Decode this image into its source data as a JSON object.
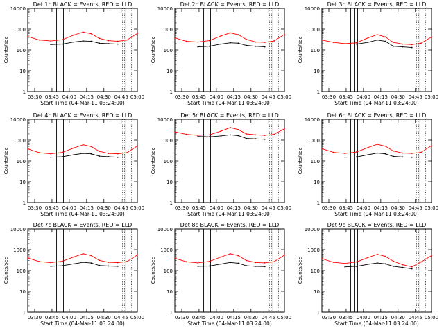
{
  "figure": {
    "background": "#ffffff",
    "series_colors": {
      "events": "#000000",
      "lld": "#ff0000"
    },
    "x_axis": {
      "title": "Start Time (04-Mar-11 03:24:00)",
      "tick_labels": [
        "03:30",
        "03:45",
        "04:00",
        "04:15",
        "04:30",
        "04:45",
        "05:00"
      ],
      "range_minutes": [
        0,
        95
      ]
    },
    "y_axis": {
      "title": "Counts/sec",
      "scale": "log",
      "range": [
        1,
        10000
      ],
      "tick_labels": [
        "1",
        "10",
        "100",
        "1000",
        "10000"
      ]
    }
  },
  "chart_data": [
    {
      "type": "line",
      "title": "Det 1c BLACK = Events, RED = LLD",
      "x": [
        0,
        10,
        20,
        30,
        40,
        48,
        55,
        62,
        70,
        78,
        86,
        95
      ],
      "series": [
        {
          "color": "#000000",
          "values": [
            null,
            null,
            180,
            190,
            240,
            270,
            260,
            210,
            200,
            190,
            null,
            null
          ]
        },
        {
          "color": "#ff0000",
          "values": [
            440,
            300,
            270,
            310,
            520,
            720,
            600,
            360,
            280,
            260,
            300,
            620
          ]
        }
      ]
    },
    {
      "type": "line",
      "title": "Det 2c BLACK = Events, RED = LLD",
      "x": [
        0,
        10,
        20,
        30,
        40,
        48,
        55,
        62,
        70,
        78,
        86,
        95
      ],
      "series": [
        {
          "color": "#000000",
          "values": [
            null,
            null,
            140,
            150,
            190,
            220,
            210,
            165,
            150,
            140,
            null,
            null
          ]
        },
        {
          "color": "#ff0000",
          "values": [
            380,
            260,
            240,
            280,
            470,
            660,
            540,
            320,
            240,
            230,
            270,
            560
          ]
        }
      ]
    },
    {
      "type": "line",
      "title": "Det 3c BLACK = Events, RED = LLD",
      "x": [
        0,
        10,
        20,
        30,
        40,
        48,
        55,
        62,
        70,
        78,
        86,
        95
      ],
      "series": [
        {
          "color": "#000000",
          "values": [
            null,
            null,
            200,
            190,
            230,
            300,
            260,
            150,
            140,
            130,
            null,
            null
          ]
        },
        {
          "color": "#ff0000",
          "values": [
            300,
            230,
            200,
            220,
            380,
            540,
            420,
            230,
            190,
            180,
            210,
            420
          ]
        }
      ]
    },
    {
      "type": "line",
      "title": "Det 4c BLACK = Events, RED = LLD",
      "x": [
        0,
        10,
        20,
        30,
        40,
        48,
        55,
        62,
        70,
        78,
        86,
        95
      ],
      "series": [
        {
          "color": "#000000",
          "values": [
            null,
            null,
            150,
            160,
            200,
            230,
            220,
            170,
            160,
            150,
            null,
            null
          ]
        },
        {
          "color": "#ff0000",
          "values": [
            380,
            250,
            220,
            260,
            420,
            600,
            490,
            290,
            230,
            220,
            250,
            520
          ]
        }
      ]
    },
    {
      "type": "line",
      "title": "Det 5r BLACK = Events, RED = LLD",
      "x": [
        0,
        10,
        20,
        30,
        40,
        48,
        55,
        62,
        70,
        78,
        86,
        95
      ],
      "series": [
        {
          "color": "#000000",
          "values": [
            null,
            null,
            1500,
            1450,
            1600,
            1800,
            1650,
            1200,
            1150,
            1100,
            null,
            null
          ]
        },
        {
          "color": "#ff0000",
          "values": [
            2500,
            1900,
            1700,
            1800,
            2700,
            4000,
            3200,
            2000,
            1800,
            1700,
            1900,
            3500
          ]
        }
      ]
    },
    {
      "type": "line",
      "title": "Det 6c BLACK = Events, RED = LLD",
      "x": [
        0,
        10,
        20,
        30,
        40,
        48,
        55,
        62,
        70,
        78,
        86,
        95
      ],
      "series": [
        {
          "color": "#000000",
          "values": [
            null,
            null,
            150,
            155,
            200,
            240,
            220,
            165,
            155,
            150,
            null,
            null
          ]
        },
        {
          "color": "#ff0000",
          "values": [
            390,
            260,
            230,
            270,
            440,
            630,
            510,
            300,
            240,
            230,
            260,
            540
          ]
        }
      ]
    },
    {
      "type": "line",
      "title": "Det 7c BLACK = Events, RED = LLD",
      "x": [
        0,
        10,
        20,
        30,
        40,
        48,
        55,
        62,
        70,
        78,
        86,
        95
      ],
      "series": [
        {
          "color": "#000000",
          "values": [
            null,
            null,
            160,
            170,
            210,
            250,
            230,
            175,
            165,
            160,
            null,
            null
          ]
        },
        {
          "color": "#ff0000",
          "values": [
            400,
            270,
            240,
            280,
            450,
            640,
            520,
            310,
            250,
            240,
            270,
            560
          ]
        }
      ]
    },
    {
      "type": "line",
      "title": "Det 8c BLACK = Events, RED = LLD",
      "x": [
        0,
        10,
        20,
        30,
        40,
        48,
        55,
        62,
        70,
        78,
        86,
        95
      ],
      "series": [
        {
          "color": "#000000",
          "values": [
            null,
            null,
            160,
            165,
            205,
            245,
            225,
            170,
            160,
            155,
            null,
            null
          ]
        },
        {
          "color": "#ff0000",
          "values": [
            390,
            265,
            235,
            275,
            445,
            635,
            515,
            305,
            245,
            235,
            265,
            550
          ]
        }
      ]
    },
    {
      "type": "line",
      "title": "Det 9c BLACK = Events, RED = LLD",
      "x": [
        0,
        10,
        20,
        30,
        40,
        48,
        55,
        62,
        70,
        78,
        86,
        95
      ],
      "series": [
        {
          "color": "#000000",
          "values": [
            null,
            null,
            150,
            160,
            200,
            230,
            210,
            160,
            140,
            120,
            null,
            null
          ]
        },
        {
          "color": "#ff0000",
          "values": [
            370,
            250,
            220,
            260,
            420,
            600,
            480,
            280,
            190,
            150,
            260,
            520
          ]
        }
      ]
    }
  ]
}
